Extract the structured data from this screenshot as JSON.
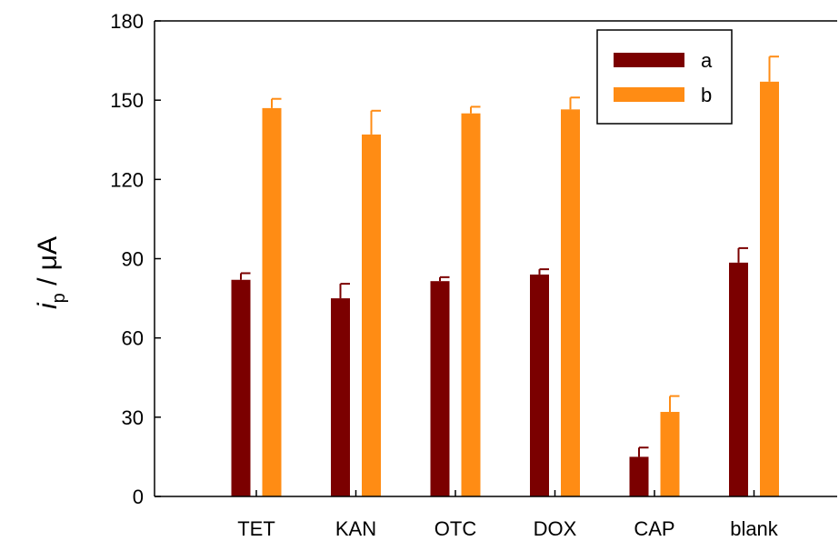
{
  "chart_data": {
    "type": "bar",
    "categories": [
      "TET",
      "KAN",
      "OTC",
      "DOX",
      "CAP",
      "blank"
    ],
    "series": [
      {
        "name": "a",
        "color": "#7b0000",
        "values": [
          82,
          75,
          81.5,
          84,
          15,
          88.5
        ],
        "errors": [
          2.5,
          5.5,
          1.5,
          2,
          3.5,
          5.5
        ]
      },
      {
        "name": "b",
        "color": "#ff8c14",
        "values": [
          147,
          137,
          145,
          146.5,
          32,
          157
        ],
        "errors": [
          3.5,
          9,
          2.5,
          4.5,
          6,
          9.5
        ]
      }
    ],
    "ylabel": {
      "italic": "i",
      "subscript": "p",
      "rest": " / μA"
    },
    "ylim": [
      0,
      180
    ],
    "yticks": [
      "0",
      "30",
      "60",
      "90",
      "120",
      "150",
      "180"
    ],
    "legend": "top-right",
    "grid": false
  }
}
